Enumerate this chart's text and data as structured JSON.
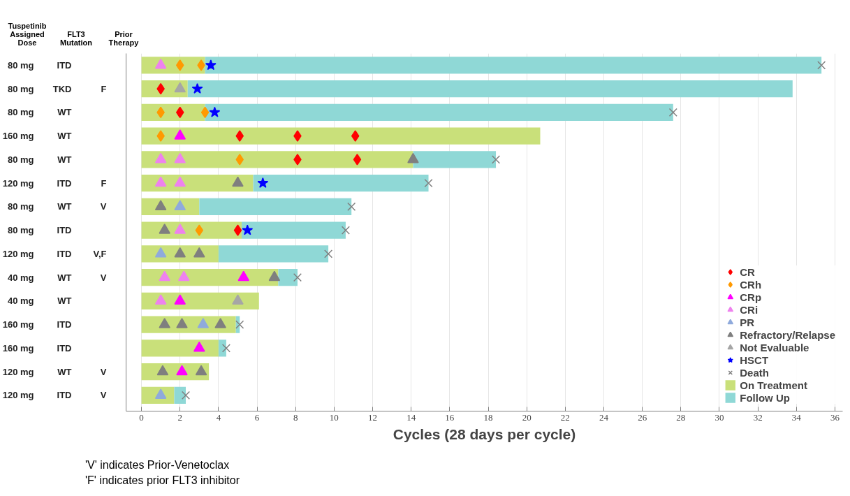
{
  "chart_data": {
    "type": "bar",
    "orientation": "horizontal",
    "stacked": true,
    "xlabel": "Cycles (28 days per cycle)",
    "categories": [
      "80 mg",
      "80 mg",
      "80 mg",
      "160 mg",
      "80 mg",
      "120 mg",
      "80 mg",
      "80 mg",
      "120 mg",
      "40 mg",
      "40 mg",
      "160 mg",
      "160 mg",
      "120 mg",
      "120 mg"
    ],
    "xlim": [
      -0.8,
      36.4
    ],
    "xticks": [
      0,
      2,
      4,
      6,
      8,
      10,
      12,
      14,
      16,
      18,
      20,
      22,
      24,
      26,
      28,
      30,
      32,
      34,
      36
    ],
    "grid": "x",
    "legend": "bottom right",
    "series": [
      {
        "name": "CR",
        "type": "scatter",
        "marker": "diamond",
        "color": "#ff0000",
        "values": [
          null,
          1.0,
          2.0,
          5.1,
          8.1,
          null,
          null,
          5.0,
          null,
          null,
          null,
          null,
          null,
          null,
          null
        ]
      },
      {
        "type": "scatter",
        "marker": "diamond",
        "color": "#ff0000",
        "values": [
          null,
          null,
          null,
          8.1,
          11.2,
          null,
          null,
          null,
          null,
          null,
          null,
          null,
          null,
          null,
          null
        ]
      },
      {
        "type": "scatter",
        "marker": "diamond",
        "color": "#ff0000",
        "values": [
          null,
          null,
          null,
          11.1,
          null,
          null,
          null,
          null,
          null,
          null,
          null,
          null,
          null,
          null,
          null
        ]
      },
      {
        "name": "CRh",
        "type": "scatter",
        "marker": "diamond",
        "color": "#ff9900",
        "values": [
          2.0,
          null,
          1.0,
          1.0,
          5.1,
          null,
          null,
          3.0,
          null,
          null,
          null,
          null,
          null,
          null,
          null
        ]
      },
      {
        "type": "scatter",
        "marker": "diamond",
        "color": "#ff9900",
        "values": [
          3.1,
          null,
          3.3,
          null,
          null,
          null,
          null,
          null,
          null,
          null,
          null,
          null,
          null,
          null,
          null
        ]
      },
      {
        "name": "CRp",
        "type": "scatter",
        "marker": "triangle",
        "color": "#ff00ff",
        "values": [
          null,
          null,
          null,
          2.0,
          null,
          null,
          null,
          null,
          null,
          5.3,
          2.0,
          null,
          3.0,
          2.1,
          null
        ]
      },
      {
        "name": "CRi",
        "type": "scatter",
        "marker": "triangle",
        "color": "#ee82ee",
        "values": [
          1.0,
          null,
          null,
          null,
          1.0,
          1.0,
          null,
          2.0,
          null,
          1.2,
          1.0,
          null,
          null,
          null,
          null
        ]
      },
      {
        "type": "scatter",
        "marker": "triangle",
        "color": "#ee82ee",
        "values": [
          null,
          null,
          null,
          null,
          2.0,
          2.0,
          null,
          null,
          null,
          2.2,
          null,
          null,
          null,
          null,
          null
        ]
      },
      {
        "name": "PR",
        "type": "scatter",
        "marker": "triangle",
        "color": "#8faadc",
        "values": [
          null,
          null,
          null,
          null,
          null,
          null,
          2.0,
          null,
          1.0,
          null,
          null,
          3.2,
          null,
          null,
          1.0
        ]
      },
      {
        "name": "Refractory/Relapse",
        "type": "scatter",
        "marker": "triangle",
        "color": "#7f7f7f",
        "values": [
          null,
          null,
          null,
          null,
          14.1,
          5.0,
          1.0,
          1.2,
          2.0,
          6.9,
          null,
          1.2,
          null,
          1.1,
          null
        ]
      },
      {
        "type": "scatter",
        "marker": "triangle",
        "color": "#7f7f7f",
        "values": [
          null,
          null,
          null,
          null,
          null,
          null,
          null,
          null,
          3.0,
          null,
          null,
          2.1,
          null,
          3.1,
          null
        ]
      },
      {
        "type": "scatter",
        "marker": "triangle",
        "color": "#7f7f7f",
        "values": [
          null,
          null,
          null,
          null,
          null,
          null,
          null,
          null,
          null,
          null,
          null,
          4.1,
          null,
          null,
          null
        ]
      },
      {
        "name": "Not Evaluable",
        "type": "scatter",
        "marker": "triangle",
        "color": "#a6a6a6",
        "values": [
          null,
          2.0,
          null,
          null,
          null,
          null,
          null,
          null,
          null,
          null,
          5.0,
          null,
          null,
          null,
          null
        ]
      },
      {
        "name": "HSCT",
        "type": "scatter",
        "marker": "star",
        "color": "#0000ff",
        "values": [
          3.6,
          2.9,
          3.8,
          null,
          null,
          6.3,
          null,
          5.5,
          null,
          null,
          null,
          null,
          null,
          null,
          null
        ]
      },
      {
        "name": "Death",
        "type": "scatter",
        "marker": "cross",
        "color": "#7f7f7f",
        "values": [
          35.3,
          null,
          27.6,
          null,
          18.4,
          14.9,
          10.9,
          10.6,
          9.7,
          8.1,
          null,
          5.1,
          4.4,
          null,
          2.3
        ]
      },
      {
        "name": "On Treatment",
        "color": "#c9e07a",
        "values": [
          3.3,
          2.4,
          3.3,
          20.7,
          14.1,
          5.8,
          3.0,
          5.2,
          4.0,
          7.1,
          6.1,
          4.9,
          4.0,
          3.5,
          1.7
        ]
      },
      {
        "name": "Follow Up",
        "color": "#8fd8d6",
        "values": [
          32.0,
          31.4,
          24.3,
          null,
          4.3,
          9.1,
          7.9,
          5.4,
          5.7,
          1.0,
          null,
          0.2,
          0.4,
          null,
          0.6
        ]
      }
    ],
    "annotations": [
      "Tuspetinib\nAssigned\nDose",
      "FLT3\nMutation",
      "Prior\nTherapy",
      "ITD",
      "TKD",
      "WT",
      "WT",
      "WT",
      "ITD",
      "WT",
      "ITD",
      "ITD",
      "WT",
      "WT",
      "ITD",
      "ITD",
      "WT",
      "ITD",
      null,
      "F",
      null,
      null,
      null,
      "F",
      "V",
      null,
      "V,F",
      "V",
      null,
      null,
      null,
      "V",
      "V",
      "'V' indicates Prior-Venetoclax",
      "'F' indicates prior FLT3 inhibitor"
    ]
  }
}
